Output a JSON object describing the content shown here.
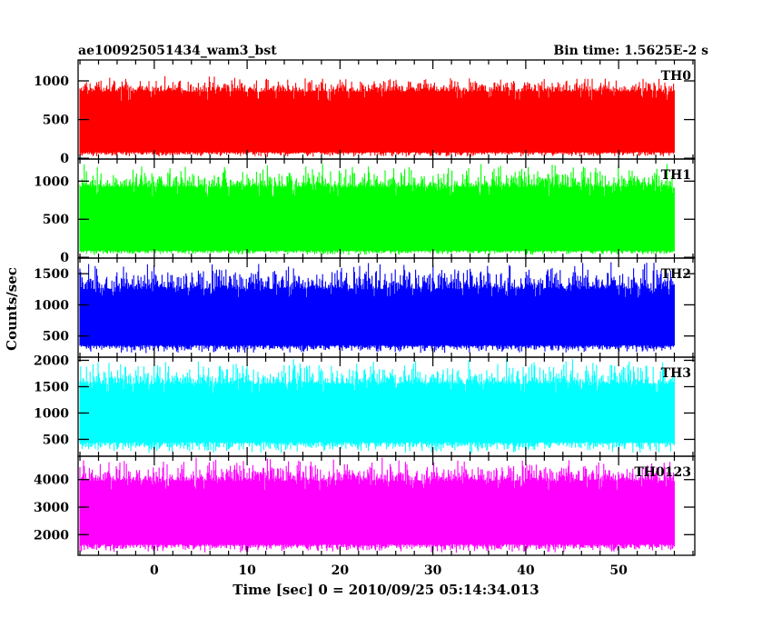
{
  "header": {
    "title": "ae100925051434_wam3_bst",
    "bin_time": "Bin time: 1.5625E-2 s"
  },
  "chart_data": {
    "type": "line",
    "ylabel": "Counts/sec",
    "xlabel": "Time [sec] 0 = 2010/09/25 05:14:34.013",
    "xlim": [
      -8.2,
      58.2
    ],
    "data_xrange": [
      -8,
      56
    ],
    "x_ticks": [
      0,
      10,
      20,
      30,
      40,
      50
    ],
    "panels": [
      {
        "name": "TH0",
        "color": "#ff0000",
        "ylim": [
          -10,
          1270
        ],
        "y_ticks": [
          0,
          500,
          1000
        ],
        "level": [
          20,
          1050
        ],
        "typical": [
          80,
          860
        ]
      },
      {
        "name": "TH1",
        "color": "#00ff00",
        "ylim": [
          -10,
          1290
        ],
        "y_ticks": [
          0,
          500,
          1000
        ],
        "level": [
          30,
          1210
        ],
        "typical": [
          90,
          920
        ]
      },
      {
        "name": "TH2",
        "color": "#0000ff",
        "ylim": [
          160,
          1750
        ],
        "y_ticks": [
          500,
          1000,
          1500
        ],
        "level": [
          230,
          1680
        ],
        "typical": [
          350,
          1250
        ]
      },
      {
        "name": "TH3",
        "color": "#00ffff",
        "ylim": [
          180,
          2060
        ],
        "y_ticks": [
          500,
          1000,
          1500,
          2000
        ],
        "level": [
          250,
          2000
        ],
        "typical": [
          450,
          1550
        ]
      },
      {
        "name": "TH0123",
        "color": "#ff00ff",
        "ylim": [
          1250,
          4850
        ],
        "y_ticks": [
          2000,
          3000,
          4000
        ],
        "level": [
          1350,
          4750
        ],
        "typical": [
          1650,
          3950
        ]
      }
    ]
  }
}
